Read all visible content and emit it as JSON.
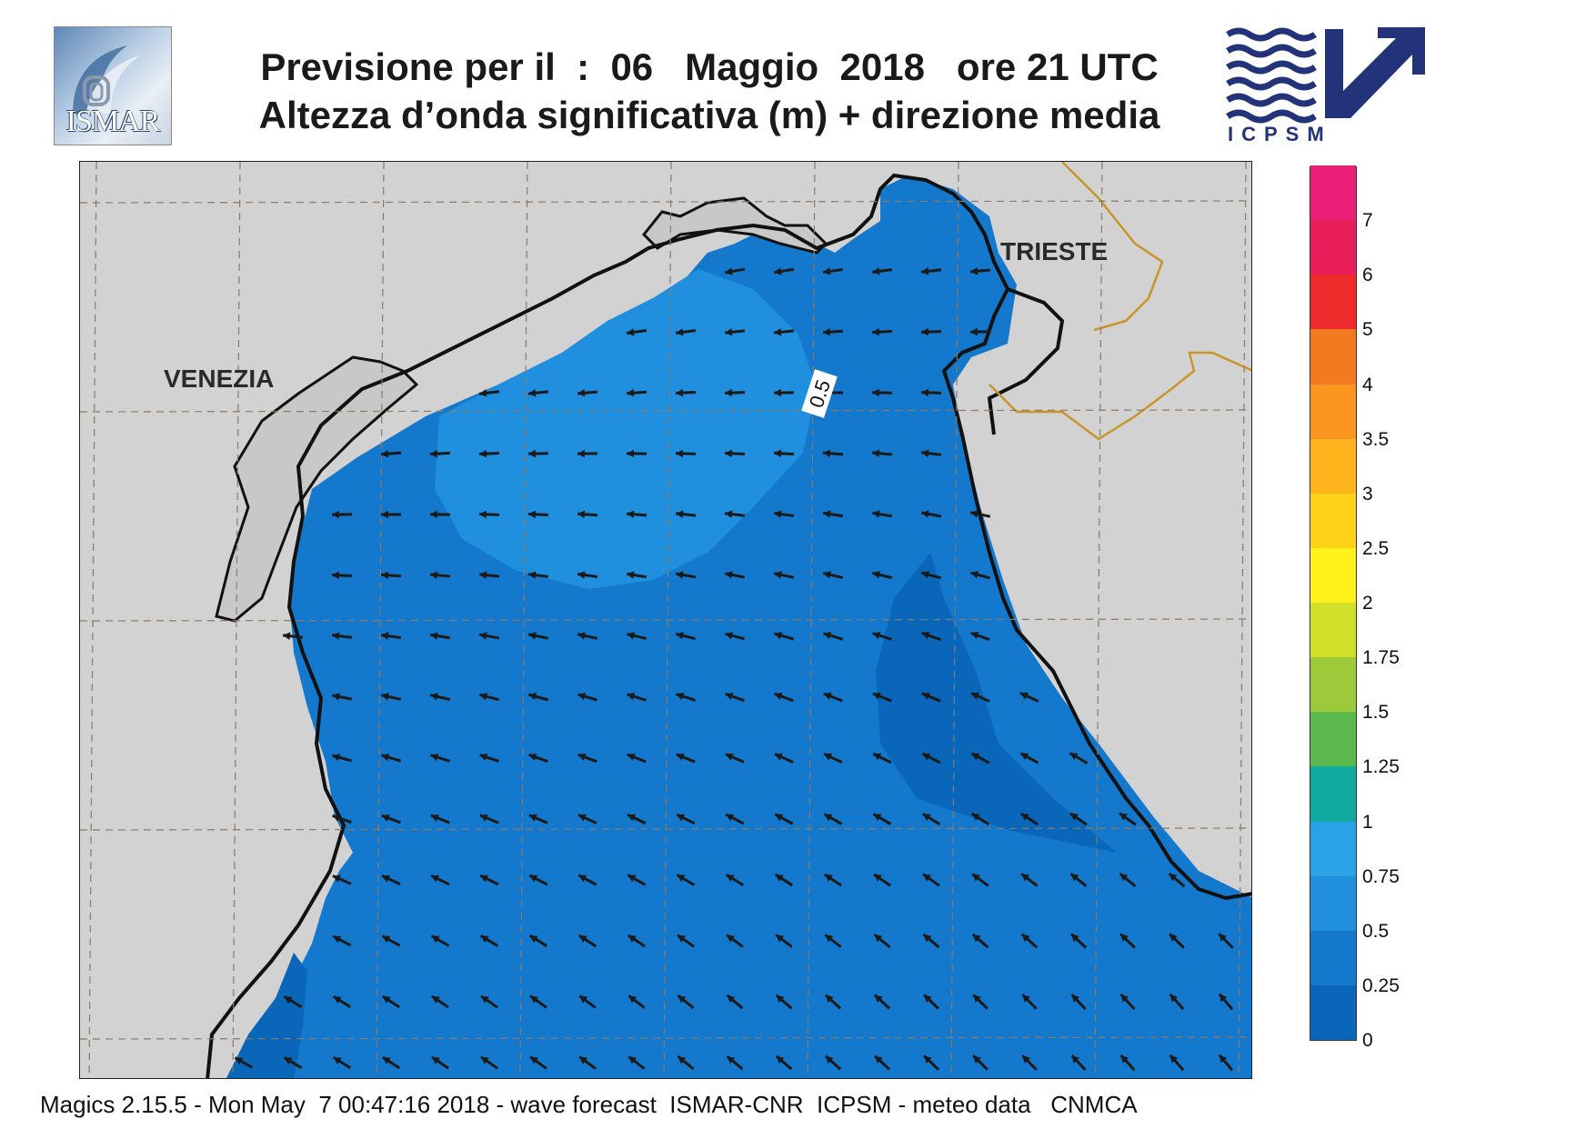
{
  "header": {
    "title_line1": "Previsione per il  :  06   Maggio  2018   ore 21 UTC",
    "title_line2": "Altezza d’onda significativa (m) + direzione media"
  },
  "logos": {
    "left": {
      "text": "ISMAR",
      "icon": "ismar-logo-icon"
    },
    "right": {
      "text": "ICPSM",
      "icon": "icpsm-logo-icon"
    }
  },
  "map": {
    "city_labels": [
      "VENEZIA",
      "TRIESTE"
    ],
    "contour_label": "0.5",
    "arrow_direction": "south-west",
    "colors": {
      "land": "#d2d2d2",
      "sea_0_025": "#0a66b8",
      "sea_025_05": "#1479cc",
      "sea_05_075": "#1f8fde",
      "coastline": "#111111",
      "border": "#c8952a",
      "grid": "#8a7a6a",
      "arrow": "#1a1a1a"
    }
  },
  "legend": {
    "title": "",
    "labels": [
      "0",
      "0.25",
      "0.5",
      "0.75",
      "1",
      "1.25",
      "1.5",
      "1.75",
      "2",
      "2.5",
      "3",
      "3.5",
      "4",
      "5",
      "6",
      "7"
    ],
    "colors": [
      "#0a66b8",
      "#1479cc",
      "#1f8fde",
      "#2ba2e6",
      "#11aaa0",
      "#5ab84d",
      "#9cca3a",
      "#d3e02a",
      "#fff21a",
      "#ffd21a",
      "#ffb41e",
      "#fb951f",
      "#f47a22",
      "#ee2a2a",
      "#ea1f5a",
      "#e91f78"
    ]
  },
  "footer": {
    "text": "Magics 2.15.5 - Mon May  7 00:47:16 2018 - wave forecast  ISMAR-CNR  ICPSM - meteo data   CNMCA"
  }
}
